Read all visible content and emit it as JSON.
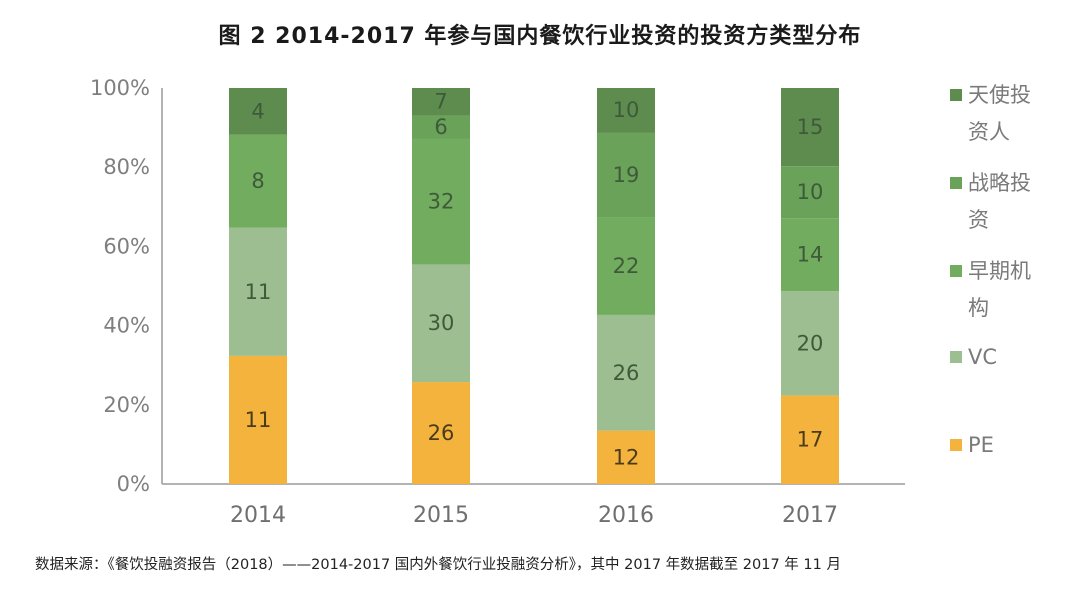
{
  "header": {
    "title": "图 2   2014-2017 年参与国内餐饮行业投资的投资方类型分布"
  },
  "footer": {
    "source": "数据来源：《餐饮投融资报告（2018）——2014-2017 国内外餐饮行业投融资分析》，其中 2017 年数据截至 2017 年 11 月"
  },
  "chart_data": {
    "type": "bar",
    "stacked": true,
    "normalized_percent": true,
    "categories": [
      "2014",
      "2015",
      "2016",
      "2017"
    ],
    "series": [
      {
        "name": "PE",
        "values": [
          11,
          26,
          12,
          17
        ],
        "color": "#f3b33d"
      },
      {
        "name": "VC",
        "values": [
          11,
          30,
          26,
          20
        ],
        "color": "#9dbe90"
      },
      {
        "name": "早期机构",
        "values": [
          8,
          32,
          22,
          14
        ],
        "color": "#72ac5f"
      },
      {
        "name": "战略投资",
        "values": [
          0,
          6,
          19,
          10
        ],
        "color": "#6aa25a"
      },
      {
        "name": "天使投资人",
        "values": [
          4,
          7,
          10,
          15
        ],
        "color": "#5e8c4f"
      }
    ],
    "legend_labels": [
      {
        "name": "天使投资人",
        "lines": [
          "天使投",
          "资人"
        ],
        "color": "#5e8c4f"
      },
      {
        "name": "战略投资",
        "lines": [
          "战略投",
          "资"
        ],
        "color": "#6aa25a"
      },
      {
        "name": "早期机构",
        "lines": [
          "早期机",
          "构"
        ],
        "color": "#72ac5f"
      },
      {
        "name": "VC",
        "lines": [
          "VC"
        ],
        "color": "#9dbe90"
      },
      {
        "name": "PE",
        "lines": [
          "PE"
        ],
        "color": "#f3b33d"
      }
    ],
    "yticks": [
      "0%",
      "20%",
      "40%",
      "60%",
      "80%",
      "100%"
    ],
    "ylim": [
      0,
      100
    ],
    "legend_position": "right",
    "grid": false
  }
}
